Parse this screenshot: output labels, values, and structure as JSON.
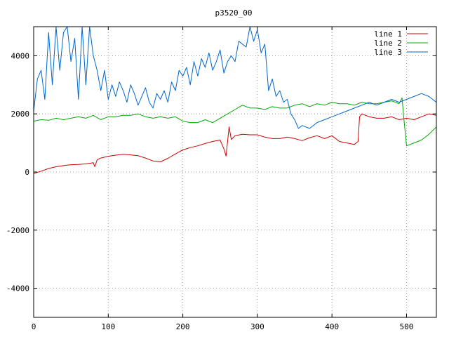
{
  "chart_data": {
    "type": "line",
    "title": "p3520_00",
    "xlabel": "",
    "ylabel": "",
    "xlim": [
      0,
      540
    ],
    "ylim": [
      -5000,
      5000
    ],
    "xticks": [
      0,
      100,
      200,
      300,
      400,
      500
    ],
    "yticks": [
      -4000,
      -2000,
      0,
      2000,
      4000
    ],
    "grid": true,
    "legend_position": "top-right",
    "series": [
      {
        "name": "line 1",
        "color": "#cc0000",
        "x": [
          0,
          10,
          20,
          30,
          40,
          50,
          60,
          70,
          80,
          82,
          85,
          90,
          100,
          110,
          120,
          130,
          140,
          150,
          160,
          170,
          180,
          190,
          200,
          210,
          220,
          230,
          240,
          250,
          255,
          258,
          260,
          262,
          265,
          270,
          280,
          290,
          300,
          310,
          320,
          330,
          340,
          350,
          360,
          370,
          380,
          390,
          400,
          410,
          420,
          430,
          435,
          437,
          440,
          450,
          460,
          470,
          480,
          490,
          500,
          510,
          520,
          530,
          540
        ],
        "values": [
          -50,
          30,
          120,
          180,
          220,
          250,
          260,
          280,
          320,
          180,
          420,
          480,
          540,
          580,
          610,
          590,
          560,
          480,
          380,
          350,
          470,
          620,
          760,
          840,
          900,
          980,
          1050,
          1100,
          800,
          550,
          1050,
          1550,
          1120,
          1250,
          1300,
          1280,
          1280,
          1200,
          1150,
          1150,
          1200,
          1150,
          1080,
          1180,
          1250,
          1150,
          1250,
          1050,
          1000,
          950,
          1050,
          1900,
          2000,
          1900,
          1850,
          1850,
          1900,
          1800,
          1850,
          1800,
          1900,
          2000,
          1950
        ]
      },
      {
        "name": "line 2",
        "color": "#00aa00",
        "x": [
          0,
          10,
          20,
          30,
          40,
          50,
          60,
          70,
          80,
          90,
          100,
          110,
          120,
          130,
          140,
          150,
          160,
          170,
          180,
          190,
          200,
          210,
          220,
          230,
          240,
          250,
          260,
          270,
          280,
          290,
          300,
          310,
          320,
          330,
          340,
          350,
          360,
          370,
          380,
          390,
          400,
          410,
          420,
          430,
          440,
          450,
          460,
          470,
          480,
          490,
          494,
          496,
          500,
          510,
          520,
          530,
          540
        ],
        "values": [
          1750,
          1800,
          1780,
          1850,
          1800,
          1850,
          1900,
          1850,
          1950,
          1800,
          1900,
          1900,
          1950,
          1950,
          2000,
          1900,
          1850,
          1900,
          1850,
          1900,
          1750,
          1700,
          1700,
          1800,
          1700,
          1850,
          2000,
          2150,
          2300,
          2200,
          2200,
          2150,
          2250,
          2200,
          2200,
          2300,
          2350,
          2250,
          2350,
          2300,
          2400,
          2350,
          2350,
          2300,
          2400,
          2350,
          2350,
          2400,
          2450,
          2350,
          2550,
          1950,
          900,
          1000,
          1100,
          1300,
          1550
        ]
      },
      {
        "name": "line 3",
        "color": "#0066cc",
        "x": [
          0,
          5,
          10,
          15,
          20,
          25,
          30,
          35,
          40,
          45,
          50,
          55,
          60,
          65,
          70,
          75,
          80,
          85,
          90,
          95,
          100,
          105,
          110,
          115,
          120,
          125,
          130,
          135,
          140,
          145,
          150,
          155,
          160,
          165,
          170,
          175,
          180,
          185,
          190,
          195,
          200,
          205,
          210,
          215,
          220,
          225,
          230,
          235,
          240,
          245,
          250,
          255,
          260,
          265,
          270,
          275,
          280,
          285,
          290,
          295,
          300,
          305,
          310,
          315,
          320,
          325,
          330,
          335,
          340,
          345,
          350,
          355,
          360,
          370,
          380,
          390,
          400,
          410,
          420,
          430,
          440,
          450,
          460,
          470,
          480,
          490,
          500,
          510,
          520,
          530,
          540
        ],
        "values": [
          2100,
          3200,
          3500,
          2500,
          4800,
          3000,
          5000,
          3500,
          4800,
          5000,
          3800,
          4600,
          2500,
          5000,
          3000,
          5000,
          4000,
          3500,
          2800,
          3500,
          2500,
          3000,
          2600,
          3100,
          2800,
          2400,
          3000,
          2700,
          2300,
          2600,
          2900,
          2400,
          2200,
          2700,
          2500,
          2800,
          2400,
          3100,
          2800,
          3500,
          3300,
          3600,
          3000,
          3800,
          3300,
          3900,
          3600,
          4100,
          3500,
          3800,
          4200,
          3400,
          3800,
          4000,
          3800,
          4500,
          4400,
          4300,
          5000,
          4500,
          4900,
          4100,
          4400,
          2800,
          3200,
          2600,
          2800,
          2400,
          2500,
          2000,
          1800,
          1500,
          1600,
          1500,
          1700,
          1800,
          1900,
          2000,
          2100,
          2200,
          2300,
          2400,
          2300,
          2400,
          2500,
          2400,
          2500,
          2600,
          2700,
          2600,
          2400
        ]
      }
    ]
  }
}
